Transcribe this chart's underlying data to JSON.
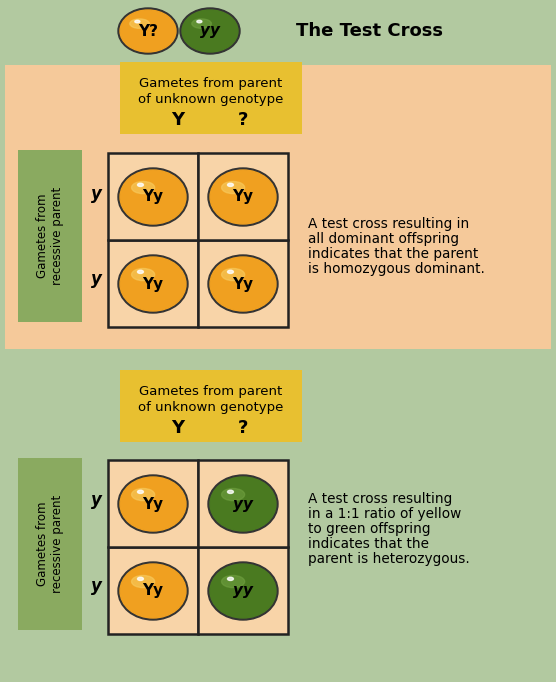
{
  "title_text": "The Test Cross",
  "bg_outer": "#b2c9a0",
  "bg_peach": "#f5c99a",
  "bg_green": "#b2c9a0",
  "yellow_egg": "#f0a020",
  "yellow_egg_hi": "#f8cc60",
  "green_egg": "#4a7a20",
  "green_egg_hi": "#70a040",
  "header_box": "#e8c030",
  "side_box": "#8aaa60",
  "cell_bg_peach": "#f8d4a8",
  "grid_color": "#222222",
  "text_black": "#111111",
  "title_text2": "The Test Cross",
  "header_line1": "Gametes from parent",
  "header_line2": "of unknown genotype",
  "header_Y": "Y",
  "header_Q": "?",
  "side_label": "Gametes from\nrecessive parent",
  "side_y1": "y",
  "side_y2": "y",
  "annot1_line1": "A test cross resulting in",
  "annot1_line2": "all dominant offspring",
  "annot1_line3": "indicates that the parent",
  "annot1_line4": "is homozygous dominant.",
  "annot2_line1": "A test cross resulting",
  "annot2_line2": "in a 1:1 ratio of yellow",
  "annot2_line3": "to green offspring",
  "annot2_line4": "indicates that the",
  "annot2_line5": "parent is heterozygous."
}
